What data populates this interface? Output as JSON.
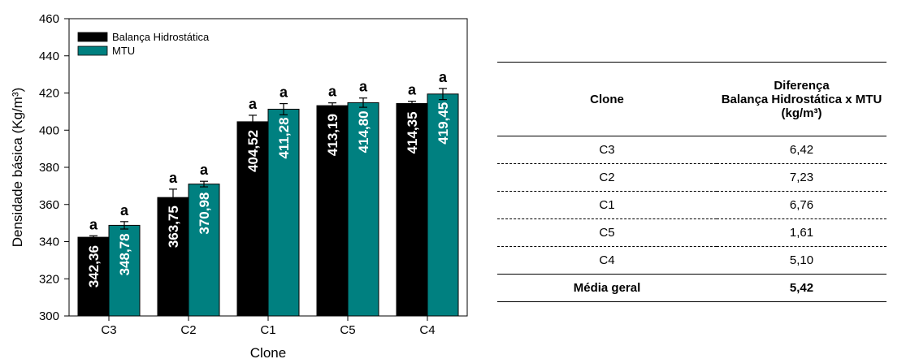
{
  "chart_data": {
    "type": "bar",
    "categories": [
      "C3",
      "C2",
      "C1",
      "C5",
      "C4"
    ],
    "series": [
      {
        "name": "Balança Hidrostática",
        "color": "#000000",
        "values": [
          342.36,
          363.75,
          404.52,
          413.19,
          414.35
        ],
        "labels": [
          "342,36",
          "363,75",
          "404,52",
          "413,19",
          "414,35"
        ],
        "errors": [
          0.8,
          4.5,
          3.5,
          1.5,
          1.2
        ],
        "letters": [
          "a",
          "a",
          "a",
          "a",
          "a"
        ]
      },
      {
        "name": "MTU",
        "color": "#008080",
        "values": [
          348.78,
          370.98,
          411.28,
          414.8,
          419.45
        ],
        "labels": [
          "348,78",
          "370,98",
          "411,28",
          "414,80",
          "419,45"
        ],
        "errors": [
          2.0,
          1.5,
          3.0,
          2.5,
          3.0
        ],
        "letters": [
          "a",
          "a",
          "a",
          "a",
          "a"
        ]
      }
    ],
    "xlabel": "Clone",
    "ylabel": "Densidade básica (Kg/m³)",
    "ylim": [
      300,
      460
    ],
    "yticks": [
      "300",
      "320",
      "340",
      "360",
      "380",
      "400",
      "420",
      "440",
      "460"
    ],
    "legend_position": "top-left",
    "grid": false
  },
  "table": {
    "header_col1": "Clone",
    "header_col2_lines": [
      "Diferença",
      "Balança Hidrostática x MTU",
      "(kg/m³)"
    ],
    "rows": [
      {
        "clone": "C3",
        "diff": "6,42"
      },
      {
        "clone": "C2",
        "diff": "7,23"
      },
      {
        "clone": "C1",
        "diff": "6,76"
      },
      {
        "clone": "C5",
        "diff": "1,61"
      },
      {
        "clone": "C4",
        "diff": "5,10"
      }
    ],
    "mean_label": "Média geral",
    "mean_value": "5,42"
  }
}
